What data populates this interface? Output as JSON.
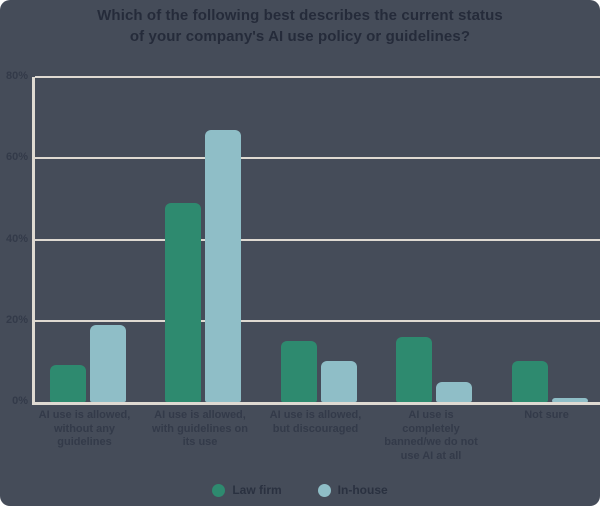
{
  "title": {
    "line1": "Which of the following best describes the current status",
    "line2": "of your company's AI use policy or guidelines?"
  },
  "chart_data": {
    "type": "bar",
    "title": "Which of the following best describes the current status of your company's AI use policy or guidelines?",
    "categories": [
      "AI use is allowed, without any guidelines",
      "AI use is allowed, with guidelines on its use",
      "AI use is allowed, but discouraged",
      "AI use is completely banned/we do not use AI at all",
      "Not sure"
    ],
    "series": [
      {
        "name": "Law firm",
        "color": "#2E8A6F",
        "values": [
          9,
          49,
          15,
          16,
          10
        ]
      },
      {
        "name": "In-house",
        "color": "#8FBEC7",
        "values": [
          19,
          67,
          10,
          5,
          1
        ]
      }
    ],
    "unit": "%",
    "ylim": [
      0,
      80
    ],
    "yticks": [
      0,
      20,
      40,
      60,
      80
    ],
    "ytick_labels": [
      "0%",
      "20%",
      "40%",
      "60%",
      "80%"
    ],
    "grid": true,
    "legend_position": "bottom"
  },
  "colors": {
    "card_background": "#454C59",
    "page_background": "#FFFFFF",
    "title_text": "#252B3A",
    "axis_text": "#333A49",
    "legend_text": "#2A3140",
    "gridline": "#DFDAD2",
    "law_firm_green": "#2E8A6F",
    "in_house_blue": "#8FBEC7"
  }
}
